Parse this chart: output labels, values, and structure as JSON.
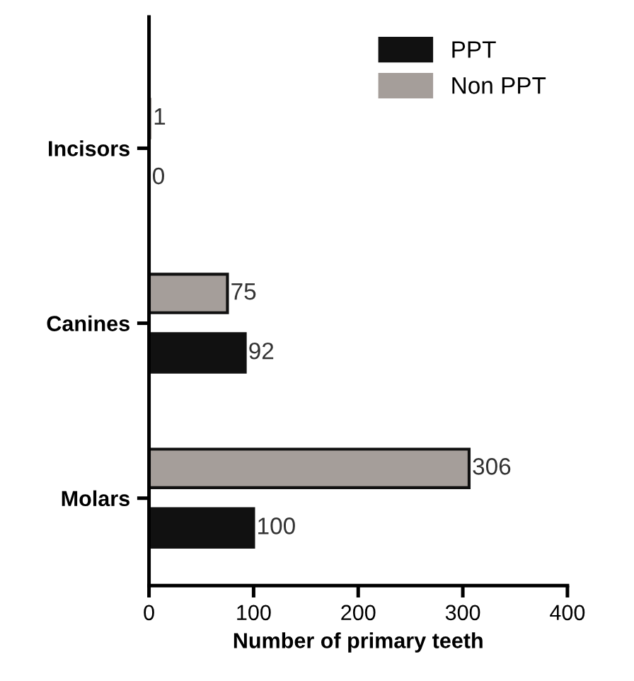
{
  "chart_data": {
    "type": "bar",
    "orientation": "horizontal",
    "categories": [
      "Incisors",
      "Canines",
      "Molars"
    ],
    "series": [
      {
        "name": "PPT",
        "color": "#111111",
        "values": [
          0,
          92,
          100
        ]
      },
      {
        "name": "Non PPT",
        "color": "#a59e9a",
        "values": [
          1,
          75,
          306
        ]
      }
    ],
    "xlabel": "Number of primary teeth",
    "xlim": [
      0,
      400
    ],
    "xticks": [
      0,
      100,
      200,
      300,
      400
    ],
    "data_labels": true,
    "legend": "top right",
    "grid": false
  }
}
